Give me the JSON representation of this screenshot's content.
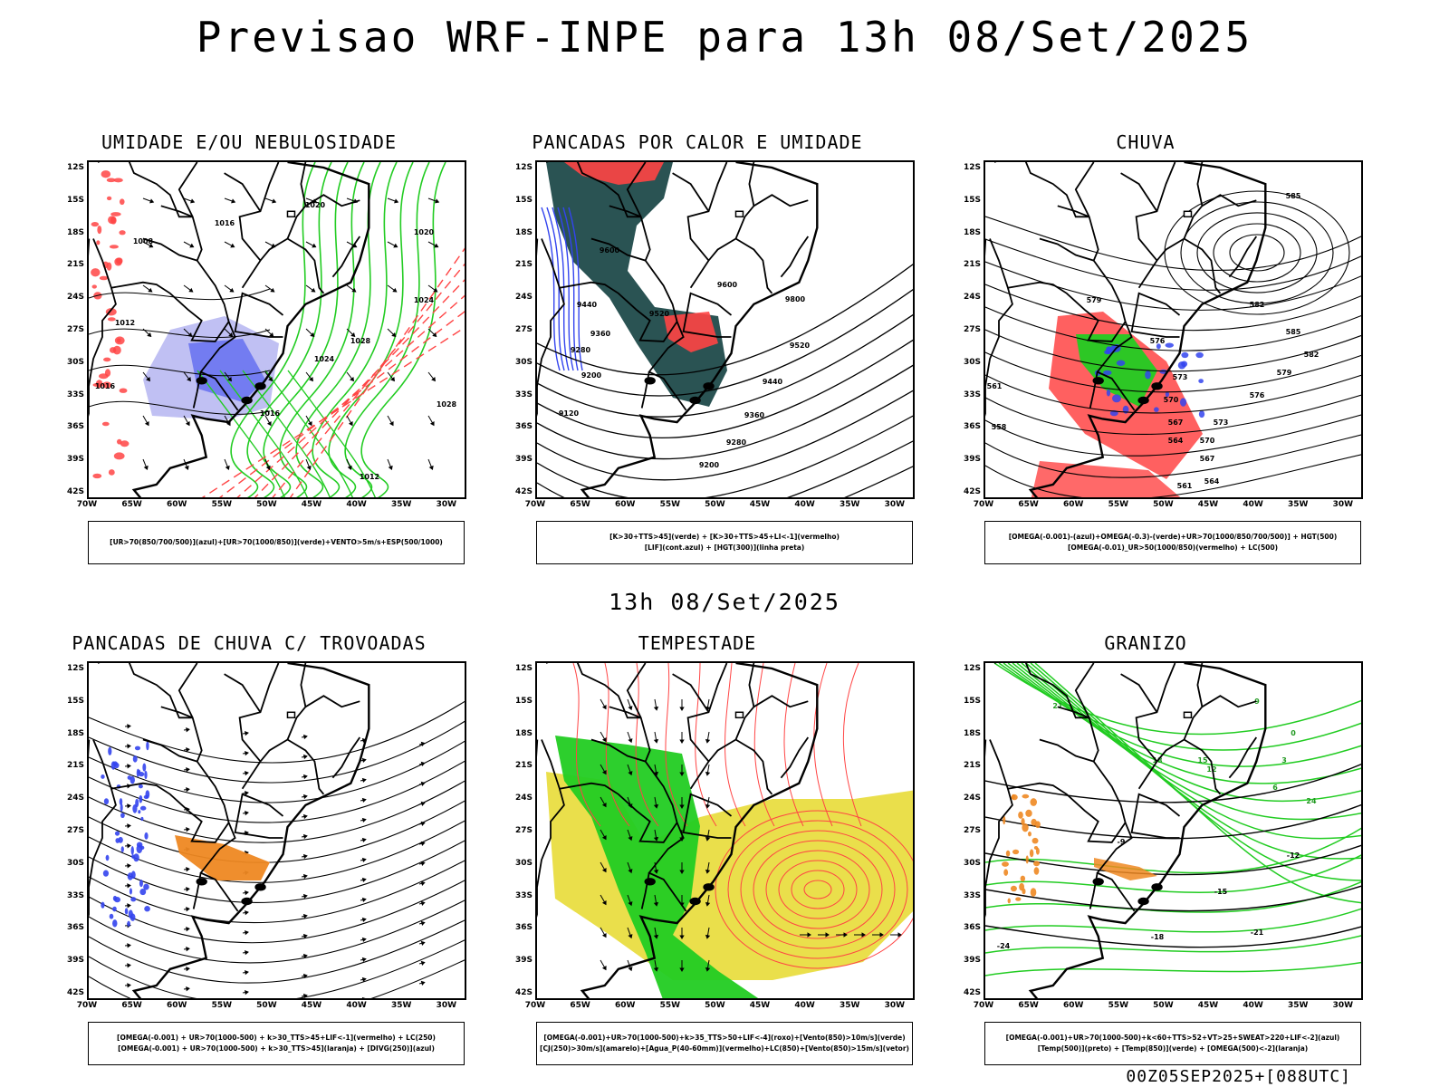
{
  "title": "Previsao WRF-INPE  para 13h 08/Set/2025",
  "subtitle": "13h 08/Set/2025",
  "footer": "00Z05SEP2025+[088UTC]",
  "axis": {
    "lat_labels": [
      "12S",
      "15S",
      "18S",
      "21S",
      "24S",
      "27S",
      "30S",
      "33S",
      "36S",
      "39S",
      "42S"
    ],
    "lon_labels": [
      "70W",
      "65W",
      "60W",
      "55W",
      "50W",
      "45W",
      "40W",
      "35W",
      "30W"
    ]
  },
  "colors": {
    "blue": "#3344ee",
    "green": "#22cc22",
    "red": "#ff4444",
    "dark_teal": "#1f4a4a",
    "yellow": "#e8dc3c",
    "orange": "#ee8822",
    "lavender": "#b0b0f0"
  },
  "panels": [
    {
      "title": "UMIDADE E/OU NEBULOSIDADE",
      "legend": [
        "[UR>70(850/700/500)](azul)+[UR>70(1000/850)](verde)+VENTO>5m/s+ESP(500/1000)"
      ],
      "contour_labels": [
        "1016",
        "1012",
        "1008",
        "1016",
        "1020",
        "1024",
        "1028",
        "1028",
        "1024",
        "1020",
        "1016",
        "1012"
      ]
    },
    {
      "title": "PANCADAS POR CALOR E UMIDADE",
      "legend": [
        "[K>30+TTS>45](verde) + [K>30+TTS>45+LI<-1](vermelho)",
        "[LIF](cont.azul) + [HGT(300)](linha preta)"
      ],
      "contour_labels": [
        "9600",
        "9520",
        "9440",
        "9360",
        "9280",
        "9200",
        "9120",
        "9800",
        "9600",
        "9520",
        "9440",
        "9360",
        "9280",
        "9200"
      ]
    },
    {
      "title": "CHUVA",
      "legend": [
        "[OMEGA(-0.001)-(azul)+OMEGA(-0.3)-(verde)+UR>70(1000/850/700/500)] + HGT(500)",
        "[OMEGA(-0.01)_UR>50(1000/850)(vermelho) + LC(500)"
      ],
      "contour_labels": [
        "585",
        "582",
        "579",
        "576",
        "573",
        "570",
        "567",
        "564",
        "561",
        "558",
        "585",
        "582",
        "579",
        "576",
        "573",
        "570",
        "567",
        "564",
        "561"
      ]
    },
    {
      "title": "PANCADAS DE CHUVA C/ TROVOADAS",
      "legend": [
        "[OMEGA(-0.001) + UR>70(1000-500) + k>30_TTS>45+LIF<-1](vermelho) + LC(250)",
        "[OMEGA(-0.001) + UR>70(1000-500) + k>30_TTS>45](laranja) + [DIVG(250)](azul)"
      ],
      "contour_labels": []
    },
    {
      "title": "TEMPESTADE",
      "legend": [
        "[OMEGA(-0.001)+UR>70(1000-500)+k>35_TTS>50+LIF<-4](roxo)+[Vento(850)>10m/s](verde)",
        "[CJ(250)>30m/s](amarelo)+[Agua_P(40-60mm)](vermelho)+LC(850)+[Vento(850)>15m/s](vetor)"
      ],
      "contour_labels": []
    },
    {
      "title": "GRANIZO",
      "legend": [
        "[OMEGA(-0.001)+UR>70(1000-500)+k<60+TTS>52+VT>25+SWEAT>220+LIF<-2](azul)",
        "[Temp(500)](preto) + [Temp(850)](verde) + [OMEGA(500)<-2](laranja)"
      ],
      "contour_labels": [
        "-24",
        "-21",
        "-18",
        "-15",
        "-12",
        "-9",
        "21",
        "18",
        "15",
        "12",
        "9",
        "6",
        "3",
        "0",
        "24"
      ]
    }
  ]
}
